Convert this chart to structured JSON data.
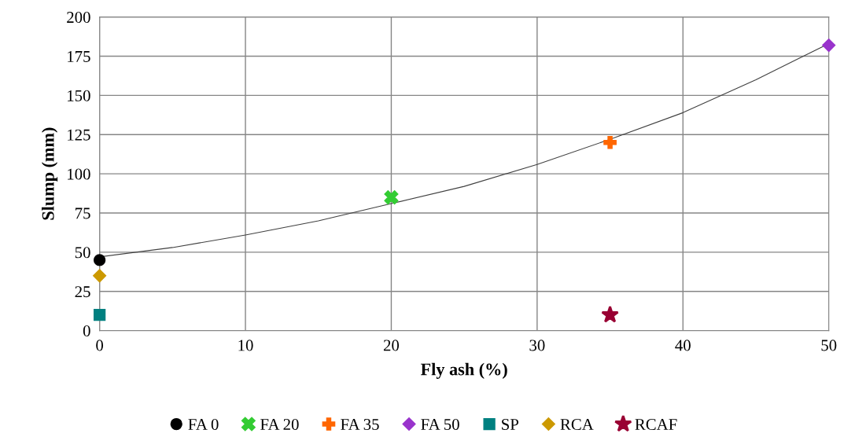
{
  "chart_data": {
    "type": "scatter",
    "xlabel": "Fly ash (%)",
    "ylabel": "Slump (mm)",
    "xlim": [
      0,
      50
    ],
    "xticks": [
      0,
      10,
      20,
      30,
      40,
      50
    ],
    "ylim": [
      0,
      200
    ],
    "yticks": [
      0,
      25,
      50,
      75,
      100,
      125,
      150,
      175,
      200
    ],
    "grid": true,
    "legend": "bottom",
    "series": [
      {
        "type": "line",
        "color": "#404040",
        "marker": "none",
        "x": [
          0,
          5,
          10,
          15,
          20,
          25,
          30,
          35,
          40,
          45,
          50
        ],
        "values": [
          47,
          53,
          61,
          70,
          81,
          92,
          106,
          122,
          139,
          160,
          183
        ]
      },
      {
        "name": "FA 0",
        "color": "#000000",
        "marker": "circle",
        "x": [
          0
        ],
        "values": [
          45
        ]
      },
      {
        "name": "FA 20",
        "color": "#33cc33",
        "marker": "x",
        "x": [
          20
        ],
        "values": [
          85
        ]
      },
      {
        "name": "FA 35",
        "color": "#ff6600",
        "marker": "cross",
        "x": [
          35
        ],
        "values": [
          120
        ]
      },
      {
        "name": "FA 50",
        "color": "#9933cc",
        "marker": "diamond",
        "x": [
          50
        ],
        "values": [
          182
        ]
      },
      {
        "name": "SP",
        "color": "#008080",
        "marker": "square",
        "x": [
          0
        ],
        "values": [
          10
        ]
      },
      {
        "name": "RCA",
        "color": "#cc9900",
        "marker": "diamond",
        "x": [
          0
        ],
        "values": [
          35
        ]
      },
      {
        "name": "RCAF",
        "color": "#990033",
        "marker": "star",
        "x": [
          35
        ],
        "values": [
          10
        ]
      }
    ]
  }
}
